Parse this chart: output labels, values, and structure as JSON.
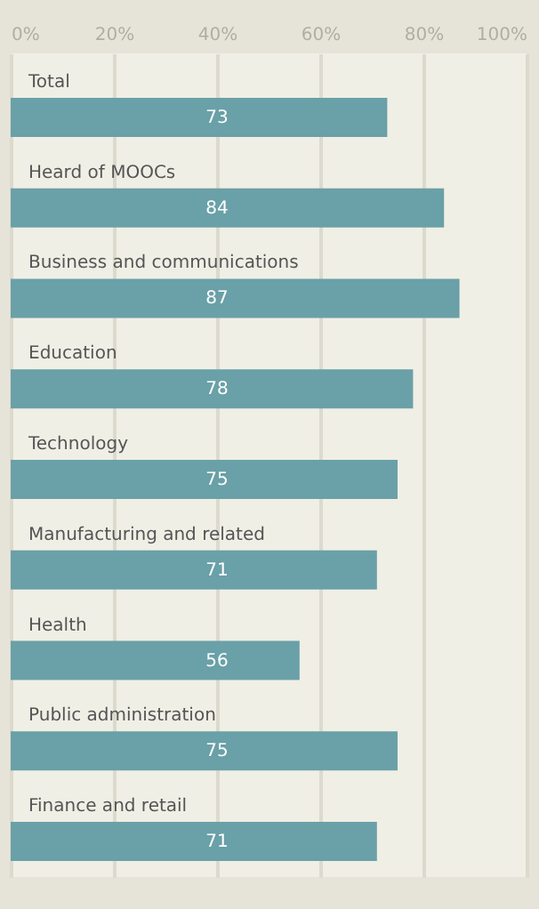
{
  "chart_data": {
    "type": "bar",
    "orientation": "horizontal",
    "categories": [
      "Total",
      "Heard of MOOCs",
      "Business and communications",
      "Education",
      "Technology",
      "Manufacturing and related",
      "Health",
      "Public administration",
      "Finance and retail"
    ],
    "values": [
      73,
      84,
      87,
      78,
      75,
      71,
      56,
      75,
      71
    ],
    "color": "#6aa0a8",
    "data_labels": true,
    "grid": "x",
    "xlim": [
      0,
      100
    ],
    "xticks": [
      {
        "value": 0,
        "label": "0%"
      },
      {
        "value": 20,
        "label": "20%"
      },
      {
        "value": 40,
        "label": "40%"
      },
      {
        "value": 60,
        "label": "60%"
      },
      {
        "value": 80,
        "label": "80%"
      },
      {
        "value": 100,
        "label": "100%"
      }
    ]
  }
}
